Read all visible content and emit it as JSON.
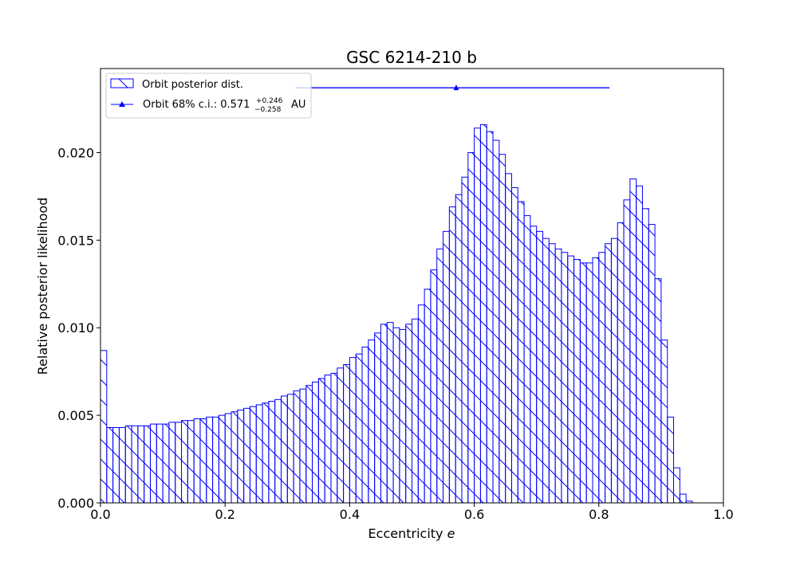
{
  "chart_data": {
    "type": "bar",
    "title": "GSC 6214-210 b",
    "xlabel": "Eccentricity",
    "xlabel_symbol": "e",
    "ylabel": "Relative posterior likelihood",
    "xlim": [
      0.0,
      1.0
    ],
    "ylim": [
      0.0,
      0.0248
    ],
    "xticks": [
      "0.0",
      "0.2",
      "0.4",
      "0.6",
      "0.8",
      "1.0"
    ],
    "yticks": [
      "0.000",
      "0.005",
      "0.010",
      "0.015",
      "0.020"
    ],
    "grid": false,
    "legend_position": "top-left",
    "bar_color": "#0000ff",
    "bin_width": 0.01,
    "series": [
      {
        "name": "Orbit posterior dist.",
        "bin_starts": [
          0.0,
          0.01,
          0.02,
          0.03,
          0.04,
          0.05,
          0.06,
          0.07,
          0.08,
          0.09,
          0.1,
          0.11,
          0.12,
          0.13,
          0.14,
          0.15,
          0.16,
          0.17,
          0.18,
          0.19,
          0.2,
          0.21,
          0.22,
          0.23,
          0.24,
          0.25,
          0.26,
          0.27,
          0.28,
          0.29,
          0.3,
          0.31,
          0.32,
          0.33,
          0.34,
          0.35,
          0.36,
          0.37,
          0.38,
          0.39,
          0.4,
          0.41,
          0.42,
          0.43,
          0.44,
          0.45,
          0.46,
          0.47,
          0.48,
          0.49,
          0.5,
          0.51,
          0.52,
          0.53,
          0.54,
          0.55,
          0.56,
          0.57,
          0.58,
          0.59,
          0.6,
          0.61,
          0.62,
          0.63,
          0.64,
          0.65,
          0.66,
          0.67,
          0.68,
          0.69,
          0.7,
          0.71,
          0.72,
          0.73,
          0.74,
          0.75,
          0.76,
          0.77,
          0.78,
          0.79,
          0.8,
          0.81,
          0.82,
          0.83,
          0.84,
          0.85,
          0.86,
          0.87,
          0.88,
          0.89,
          0.9,
          0.91,
          0.92,
          0.93,
          0.94
        ],
        "values": [
          0.0087,
          0.0043,
          0.0043,
          0.0043,
          0.0044,
          0.0044,
          0.0044,
          0.0044,
          0.0045,
          0.0045,
          0.0045,
          0.0046,
          0.0046,
          0.0047,
          0.0047,
          0.0048,
          0.0048,
          0.0049,
          0.0049,
          0.005,
          0.0051,
          0.0052,
          0.0053,
          0.0054,
          0.0055,
          0.0056,
          0.0057,
          0.0058,
          0.0059,
          0.0061,
          0.0062,
          0.0064,
          0.0065,
          0.0067,
          0.0069,
          0.0071,
          0.0073,
          0.0074,
          0.0077,
          0.0079,
          0.0083,
          0.0085,
          0.0089,
          0.0093,
          0.0097,
          0.0102,
          0.0103,
          0.01,
          0.0099,
          0.0102,
          0.0105,
          0.0113,
          0.0122,
          0.0133,
          0.0145,
          0.0155,
          0.0169,
          0.0176,
          0.0186,
          0.02,
          0.0214,
          0.0216,
          0.0212,
          0.0207,
          0.0199,
          0.0188,
          0.018,
          0.0172,
          0.0164,
          0.0158,
          0.0155,
          0.0151,
          0.0148,
          0.0145,
          0.0143,
          0.0141,
          0.0139,
          0.0137,
          0.0137,
          0.014,
          0.0143,
          0.0148,
          0.0151,
          0.016,
          0.0173,
          0.0185,
          0.0181,
          0.0168,
          0.0159,
          0.0128,
          0.0093,
          0.0049,
          0.002,
          0.0005,
          0.0001
        ]
      },
      {
        "name": "Orbit 68% c.i.:",
        "type": "errorbar",
        "center": 0.571,
        "plus": 0.246,
        "minus": 0.258,
        "y": 0.0237
      }
    ],
    "legend": {
      "hist_label": "Orbit posterior dist.",
      "ci_label_prefix": "Orbit 68% c.i.: ",
      "ci_value": "0.571",
      "ci_plus": "+0.246",
      "ci_minus": "−0.258",
      "ci_unit": "AU"
    }
  }
}
